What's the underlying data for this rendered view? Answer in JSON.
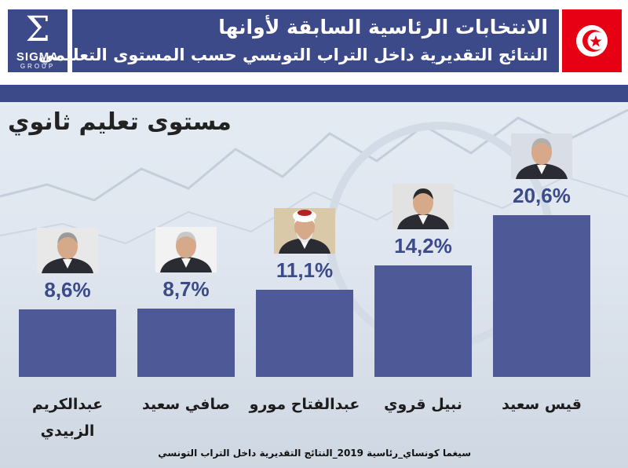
{
  "header": {
    "logo_text": "SIGMA",
    "logo_subtext": "GROUP",
    "title": "الانتخابات الرئاسية السابقة لأوانها",
    "subtitle": "النتائج التقديرية داخل التراب التونسي حسب المستوى التعليمي"
  },
  "section_title": "مستوى تعليم ثانوي",
  "footer": "سيغما كونساي_رئاسية 2019_النتائج التقديرية داخل التراب التونسي",
  "colors": {
    "brand": "#3c4a8a",
    "bar": "#4e5a98",
    "flag_red": "#e70013"
  },
  "chart_data": {
    "type": "bar",
    "categories": [
      "عبدالكريم الزبيدي",
      "صافي سعيد",
      "عبدالفتاح مورو",
      "نبيل قروي",
      "قيس سعيد"
    ],
    "values": [
      8.6,
      8.7,
      11.1,
      14.2,
      20.6
    ],
    "value_labels": [
      "8,6%",
      "8,7%",
      "11,1%",
      "14,2%",
      "20,6%"
    ],
    "name_lines": [
      [
        "عبدالكريم",
        "الزبيدي"
      ],
      [
        "صافي سعيد"
      ],
      [
        "عبدالفتاح مورو"
      ],
      [
        "نبيل قروي"
      ],
      [
        "قيس سعيد"
      ]
    ],
    "unit": "%",
    "title": "مستوى تعليم ثانوي",
    "ylim": [
      0,
      20.6
    ],
    "grid": false,
    "legend": "none"
  }
}
